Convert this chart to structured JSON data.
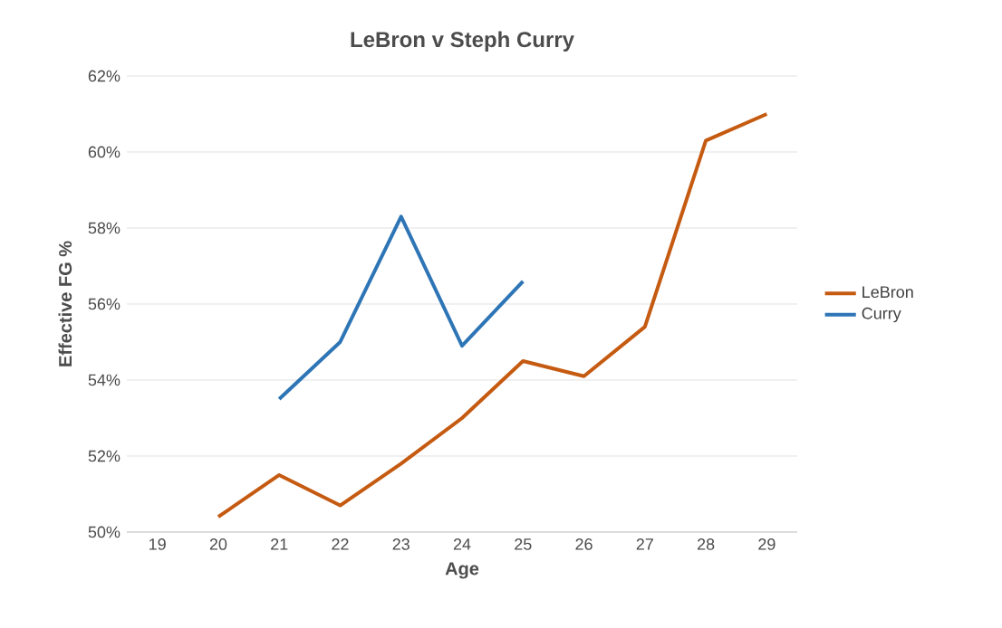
{
  "chart_data": {
    "type": "line",
    "title": "LeBron v Steph Curry",
    "xlabel": "Age",
    "ylabel": "Effective FG %",
    "categories": [
      "19",
      "20",
      "21",
      "22",
      "23",
      "24",
      "25",
      "26",
      "27",
      "28",
      "29"
    ],
    "series": [
      {
        "name": "LeBron",
        "color": "#c55a11",
        "values": [
          null,
          50.4,
          51.5,
          50.7,
          51.8,
          53.0,
          54.5,
          54.1,
          55.4,
          60.3,
          61.0
        ]
      },
      {
        "name": "Curry",
        "color": "#2e75b6",
        "values": [
          null,
          null,
          53.5,
          55.0,
          58.3,
          54.9,
          56.6,
          null,
          null,
          null,
          null
        ]
      }
    ],
    "ylim": [
      50,
      62
    ],
    "yticks": [
      {
        "value": 50,
        "label": "50%"
      },
      {
        "value": 52,
        "label": "52%"
      },
      {
        "value": 54,
        "label": "54%"
      },
      {
        "value": 56,
        "label": "56%"
      },
      {
        "value": 58,
        "label": "58%"
      },
      {
        "value": 60,
        "label": "60%"
      },
      {
        "value": 62,
        "label": "62%"
      }
    ],
    "grid": "y",
    "legend": "right",
    "marker": "none",
    "line_style": "solid"
  }
}
